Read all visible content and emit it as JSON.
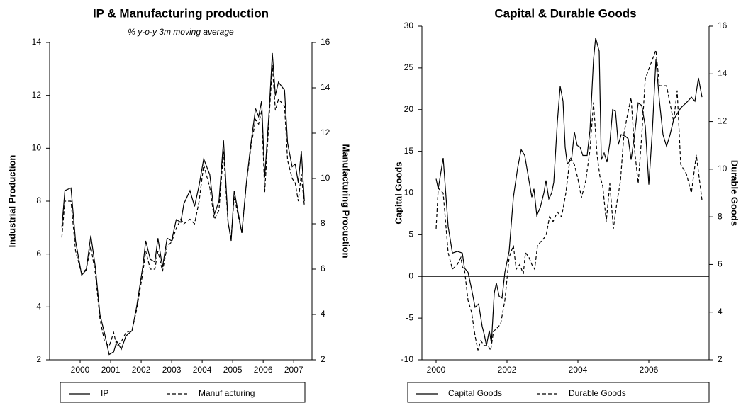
{
  "chart_data": [
    {
      "type": "line",
      "title": "IP & Manufacturing production",
      "subtitle": "% y-o-y 3m moving average",
      "ylabel": "Industrial Production",
      "y2label": "Manufacturing Procuction",
      "xlim": [
        1999.5,
        2008.1
      ],
      "xticks": [
        {
          "value": 2000.5,
          "label": "2000"
        },
        {
          "value": 2001.5,
          "label": "2001"
        },
        {
          "value": 2002.5,
          "label": "2002"
        },
        {
          "value": 2003.5,
          "label": "2003"
        },
        {
          "value": 2004.5,
          "label": "2004"
        },
        {
          "value": 2005.5,
          "label": "2005"
        },
        {
          "value": 2006.5,
          "label": "2006"
        },
        {
          "value": 2007.5,
          "label": "2007"
        }
      ],
      "ylim": [
        2,
        14
      ],
      "yticks": [
        2,
        4,
        6,
        8,
        10,
        12,
        14
      ],
      "y2lim": [
        2,
        16
      ],
      "y2ticks": [
        2,
        4,
        6,
        8,
        10,
        12,
        14,
        16
      ],
      "x": [
        1999.9,
        2000.0,
        2000.2,
        2000.35,
        2000.55,
        2000.7,
        2000.85,
        2001.0,
        2001.15,
        2001.3,
        2001.45,
        2001.6,
        2001.7,
        2001.85,
        2002.0,
        2002.2,
        2002.35,
        2002.55,
        2002.65,
        2002.8,
        2002.95,
        2003.05,
        2003.2,
        2003.35,
        2003.5,
        2003.65,
        2003.8,
        2003.9,
        2004.1,
        2004.25,
        2004.4,
        2004.55,
        2004.75,
        2004.9,
        2005.05,
        2005.2,
        2005.35,
        2005.45,
        2005.55,
        2005.8,
        2005.95,
        2006.1,
        2006.25,
        2006.35,
        2006.45,
        2006.55,
        2006.7,
        2006.8,
        2006.9,
        2007.0,
        2007.2,
        2007.3,
        2007.45,
        2007.55,
        2007.65,
        2007.75,
        2007.85
      ],
      "series": [
        {
          "name": "IP",
          "color": "#000000",
          "dash": false,
          "values": [
            7.0,
            8.4,
            8.5,
            6.5,
            5.2,
            5.4,
            6.7,
            5.5,
            3.7,
            3.0,
            2.2,
            2.3,
            2.7,
            2.4,
            2.9,
            3.1,
            4.0,
            5.5,
            6.5,
            5.8,
            5.7,
            6.6,
            5.5,
            6.6,
            6.5,
            7.3,
            7.2,
            7.9,
            8.4,
            7.8,
            8.6,
            9.6,
            9.0,
            7.5,
            8.0,
            10.3,
            7.2,
            6.5,
            8.4,
            6.8,
            8.7,
            10.2,
            11.5,
            11.2,
            11.8,
            8.9,
            11.5,
            13.6,
            12.0,
            12.5,
            12.2,
            10.2,
            9.3,
            9.4,
            8.7,
            9.9,
            8.0
          ]
        },
        {
          "name": "Manuf acturing",
          "color": "#000000",
          "dash": true,
          "axis": "y2",
          "values": [
            7.4,
            9.0,
            9.0,
            6.8,
            5.8,
            6.0,
            7.0,
            5.8,
            3.8,
            2.8,
            2.6,
            3.2,
            2.6,
            2.8,
            3.2,
            3.3,
            4.2,
            5.8,
            6.8,
            6.0,
            6.0,
            6.8,
            5.9,
            7.0,
            7.2,
            7.8,
            8.2,
            8.0,
            8.2,
            8.0,
            9.0,
            10.6,
            9.6,
            8.2,
            8.6,
            11.2,
            8.0,
            7.4,
            9.2,
            7.6,
            9.8,
            11.4,
            12.6,
            12.4,
            13.0,
            9.4,
            12.8,
            15.0,
            13.0,
            13.5,
            13.2,
            10.8,
            10.0,
            9.8,
            9.0,
            10.2,
            8.8
          ]
        }
      ]
    },
    {
      "type": "line",
      "title": "Capital & Durable Goods",
      "ylabel": "Capital Goods",
      "y2label": "Durable Goods",
      "xlim": [
        1999.6,
        2007.7
      ],
      "xticks": [
        2000,
        2002,
        2004,
        2006
      ],
      "ylim": [
        -10,
        30
      ],
      "yticks": [
        -10,
        -5,
        0,
        5,
        10,
        15,
        20,
        25,
        30
      ],
      "y2lim": [
        2,
        16
      ],
      "y2ticks": [
        2,
        4,
        6,
        8,
        10,
        12,
        14,
        16
      ],
      "zero_line": true,
      "series": [
        {
          "name": "Capital Goods",
          "color": "#000000",
          "dash": false,
          "x": [
            2000.0,
            2000.06,
            2000.2,
            2000.34,
            2000.46,
            2000.6,
            2000.74,
            2000.8,
            2000.9,
            2001.0,
            2001.1,
            2001.2,
            2001.3,
            2001.36,
            2001.42,
            2001.5,
            2001.56,
            2001.64,
            2001.7,
            2001.78,
            2001.86,
            2001.94,
            2002.06,
            2002.18,
            2002.3,
            2002.4,
            2002.5,
            2002.6,
            2002.7,
            2002.76,
            2002.84,
            2002.94,
            2003.04,
            2003.1,
            2003.18,
            2003.26,
            2003.32,
            2003.42,
            2003.5,
            2003.58,
            2003.64,
            2003.7,
            2003.82,
            2003.9,
            2003.98,
            2004.06,
            2004.14,
            2004.26,
            2004.34,
            2004.44,
            2004.5,
            2004.6,
            2004.66,
            2004.74,
            2004.82,
            2004.9,
            2004.98,
            2005.06,
            2005.14,
            2005.22,
            2005.34,
            2005.42,
            2005.5,
            2005.6,
            2005.7,
            2005.8,
            2005.9,
            2006.0,
            2006.1,
            2006.2,
            2006.3,
            2006.4,
            2006.5,
            2006.6,
            2006.7,
            2006.8,
            2006.9,
            2007.1,
            2007.2,
            2007.3,
            2007.4,
            2007.5
          ],
          "values": [
            11.7,
            10.5,
            14.2,
            6,
            2.8,
            3.0,
            2.8,
            1.0,
            0.5,
            -1.5,
            -3.7,
            -3.3,
            -6.0,
            -7.0,
            -8.3,
            -6.5,
            -8.0,
            -2.0,
            -0.8,
            -2.4,
            -2.6,
            0.5,
            3.0,
            9.5,
            13,
            15.2,
            14.5,
            12,
            9.5,
            10.5,
            7.3,
            8.3,
            10.0,
            11.5,
            9.3,
            10.0,
            11.3,
            18.5,
            22.8,
            21.0,
            15.5,
            13.5,
            14.0,
            17.3,
            15.7,
            15.5,
            14.5,
            14.5,
            17.5,
            26.0,
            28.6,
            27.0,
            14.0,
            14.8,
            13.7,
            16.0,
            20.0,
            19.8,
            15.8,
            17.0,
            16.8,
            16.5,
            14.0,
            17.0,
            20.8,
            20.5,
            18.0,
            11.0,
            17.5,
            26.0,
            21.0,
            17.0,
            15.6,
            17.0,
            18.8,
            19.5,
            20.2,
            21.0,
            21.5,
            21.0,
            23.8,
            21.5
          ]
        },
        {
          "name": "Durable Goods",
          "color": "#000000",
          "dash": true,
          "axis": "y2",
          "x": [
            2000.0,
            2000.06,
            2000.2,
            2000.34,
            2000.46,
            2000.6,
            2000.7,
            2000.74,
            2000.8,
            2000.9,
            2001.0,
            2001.1,
            2001.18,
            2001.26,
            2001.36,
            2001.46,
            2001.54,
            2001.62,
            2001.7,
            2001.82,
            2001.94,
            2002.06,
            2002.18,
            2002.26,
            2002.36,
            2002.46,
            2002.52,
            2002.62,
            2002.7,
            2002.78,
            2002.86,
            2002.98,
            2003.1,
            2003.2,
            2003.3,
            2003.42,
            2003.54,
            2003.66,
            2003.78,
            2003.9,
            2004.0,
            2004.1,
            2004.22,
            2004.34,
            2004.44,
            2004.54,
            2004.62,
            2004.7,
            2004.8,
            2004.9,
            2005.0,
            2005.1,
            2005.2,
            2005.3,
            2005.4,
            2005.5,
            2005.6,
            2005.7,
            2005.8,
            2005.9,
            2006.2,
            2006.3,
            2006.5,
            2006.7,
            2006.8,
            2006.9,
            2007.06,
            2007.2,
            2007.34,
            2007.5
          ],
          "values": [
            7.5,
            9.2,
            9.0,
            6.5,
            5.8,
            6.0,
            6.3,
            5.9,
            5.8,
            4.5,
            4.0,
            3.0,
            2.4,
            2.8,
            2.6,
            2.6,
            2.4,
            3.2,
            3.3,
            3.5,
            4.5,
            6.3,
            6.8,
            5.8,
            6.0,
            5.6,
            6.5,
            6.3,
            6.0,
            5.8,
            6.8,
            7.0,
            7.2,
            8.0,
            7.8,
            8.2,
            8.0,
            9.0,
            10.5,
            10.2,
            9.6,
            8.8,
            9.5,
            10.8,
            12.8,
            10.6,
            9.7,
            9.3,
            7.8,
            9.4,
            7.5,
            8.6,
            9.5,
            11.5,
            12.3,
            13.0,
            10.8,
            9.4,
            11.4,
            13.8,
            15.0,
            13.5,
            13.5,
            12.0,
            13.3,
            10.2,
            9.8,
            9.0,
            10.6,
            8.7
          ]
        }
      ]
    }
  ]
}
